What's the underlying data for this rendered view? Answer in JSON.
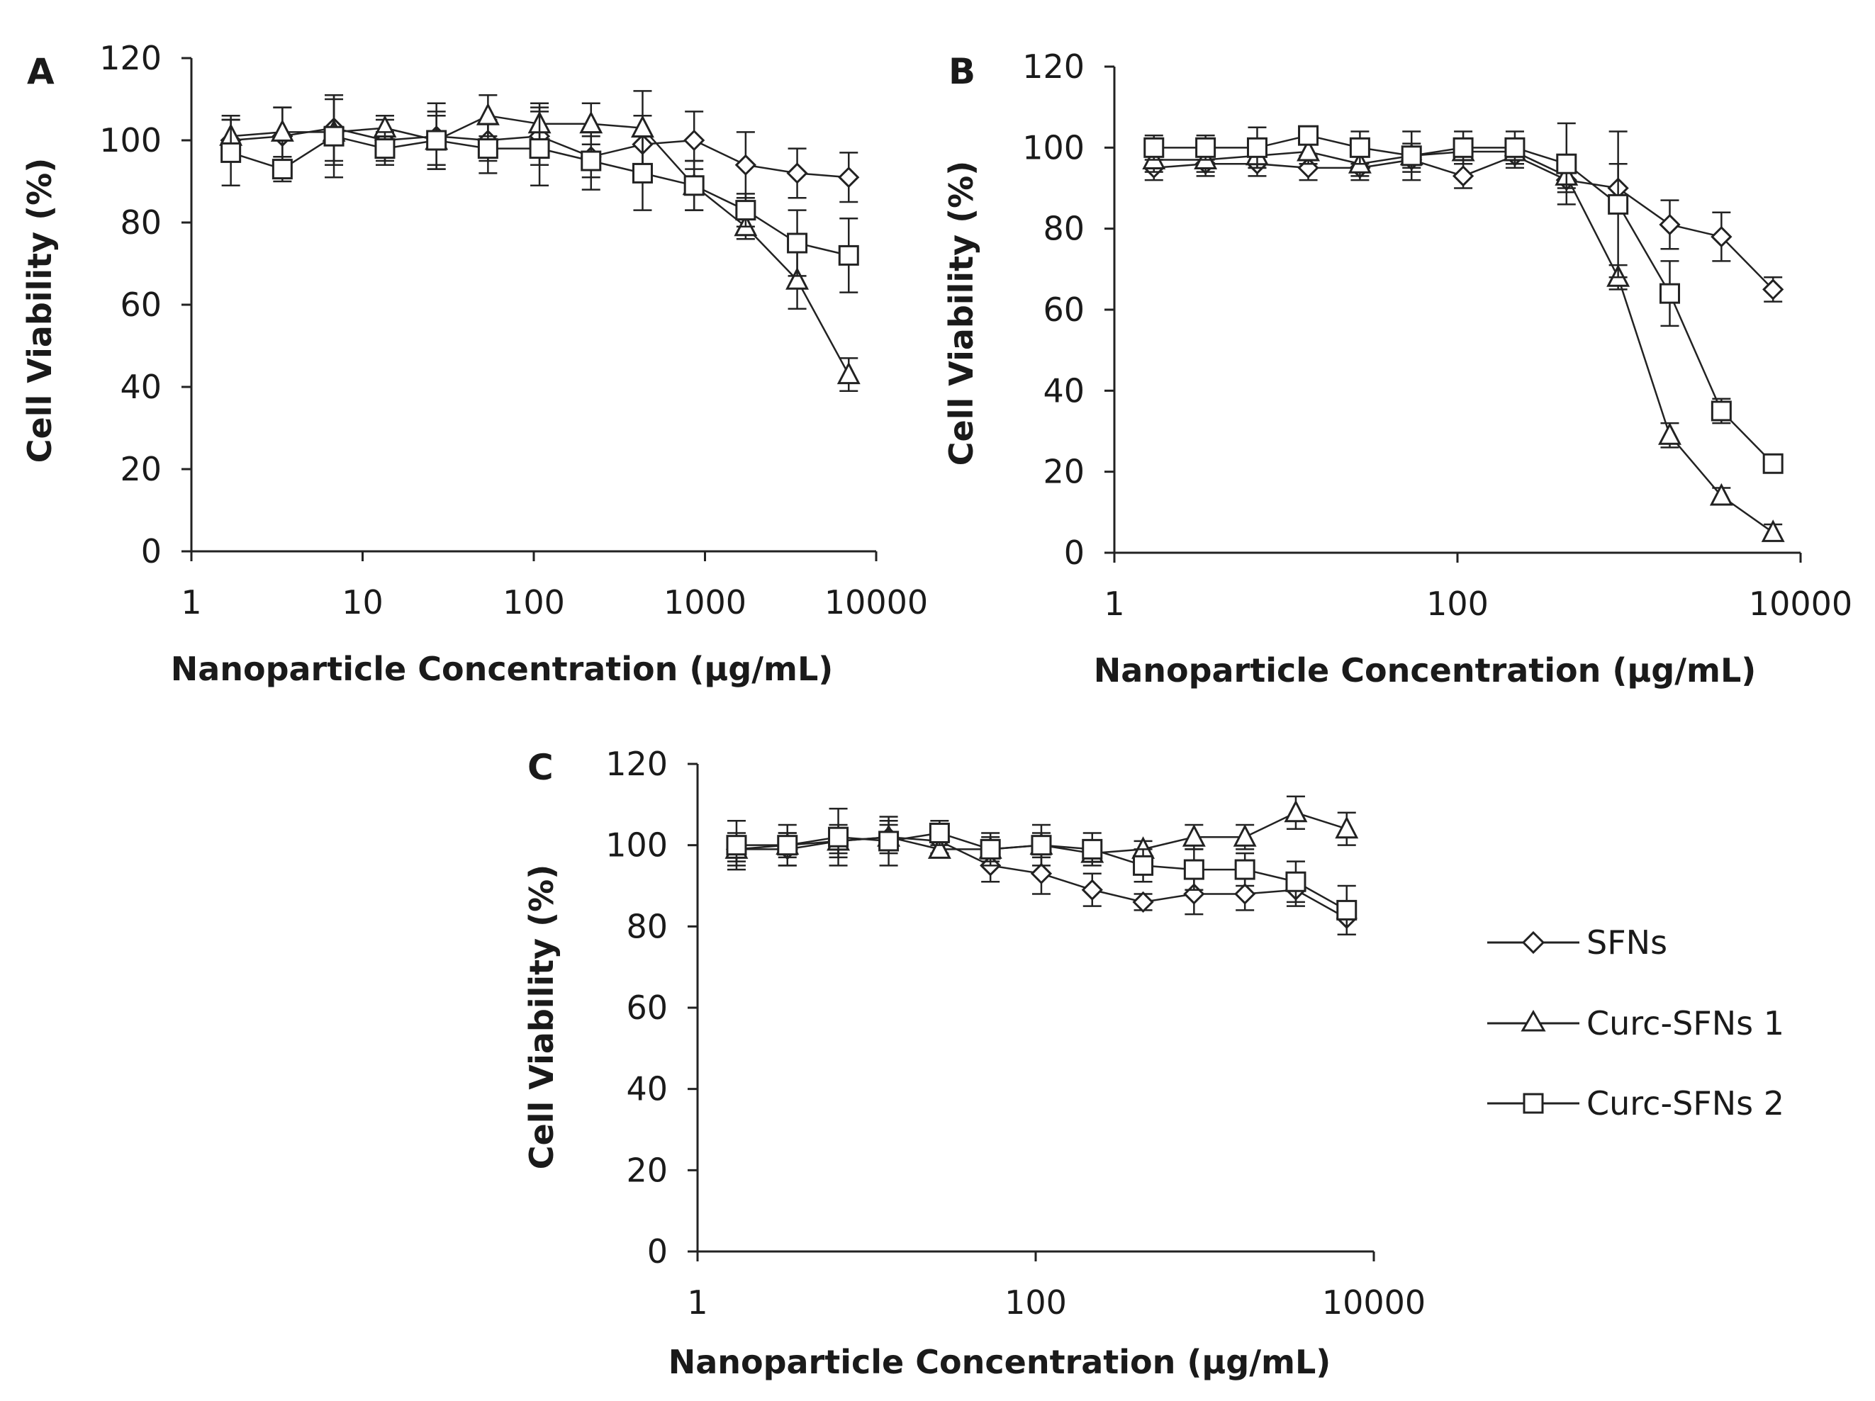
{
  "chart_data": [
    {
      "type": "line",
      "panel": "A",
      "xlabel": "Nanoparticle Concentration (µg/mL)",
      "ylabel": "Cell Viability (%)",
      "xscale": "log",
      "xlim": [
        1,
        10000
      ],
      "ylim": [
        0,
        120
      ],
      "xticks": [
        1,
        10,
        100,
        1000,
        10000
      ],
      "yticks": [
        0,
        20,
        40,
        60,
        80,
        100,
        120
      ],
      "grid": false,
      "x": [
        1.7,
        3.4,
        6.8,
        13.5,
        27,
        54,
        108,
        216,
        432,
        864,
        1728,
        3456,
        6912
      ],
      "series": [
        {
          "name": "SFNs",
          "marker": "diamond",
          "values": [
            100,
            101,
            103,
            100,
            101,
            100,
            101,
            96,
            99,
            100,
            94,
            92,
            91
          ],
          "errors": [
            5,
            7,
            8,
            5,
            8,
            5,
            7,
            5,
            7,
            7,
            8,
            6,
            6
          ]
        },
        {
          "name": "Curc-SFNs 1",
          "marker": "triangle",
          "values": [
            101,
            102,
            102,
            103,
            100,
            106,
            104,
            104,
            103,
            89,
            79,
            66,
            43
          ],
          "errors": [
            5,
            6,
            8,
            3,
            6,
            5,
            5,
            5,
            9,
            6,
            3,
            7,
            4
          ]
        },
        {
          "name": "Curc-SFNs 2",
          "marker": "square",
          "values": [
            97,
            93,
            101,
            98,
            100,
            98,
            98,
            95,
            92,
            89,
            83,
            75,
            72
          ],
          "errors": [
            8,
            3,
            10,
            4,
            7,
            6,
            9,
            7,
            9,
            6,
            4,
            8,
            9
          ]
        }
      ]
    },
    {
      "type": "line",
      "panel": "B",
      "xlabel": "Nanoparticle Concentration (µg/mL)",
      "ylabel": "Cell Viability (%)",
      "xscale": "log",
      "xlim": [
        1,
        10000
      ],
      "ylim": [
        0,
        120
      ],
      "xticks": [
        1,
        100,
        10000
      ],
      "yticks": [
        0,
        20,
        40,
        60,
        80,
        100,
        120
      ],
      "grid": false,
      "x": [
        1.7,
        3.4,
        6.8,
        13.5,
        27,
        54,
        108,
        216,
        432,
        864,
        1728,
        3456,
        6912
      ],
      "series": [
        {
          "name": "SFNs",
          "marker": "diamond",
          "values": [
            95,
            96,
            96,
            95,
            95,
            97,
            93,
            98,
            92,
            90,
            81,
            78,
            65
          ],
          "errors": [
            3,
            3,
            3,
            3,
            3,
            3,
            3,
            3,
            3,
            6,
            6,
            6,
            3
          ]
        },
        {
          "name": "Curc-SFNs 1",
          "marker": "triangle",
          "values": [
            97,
            97,
            98,
            99,
            96,
            98,
            99,
            99,
            93,
            68,
            29,
            14,
            5
          ],
          "errors": [
            3,
            3,
            3,
            3,
            3,
            3,
            3,
            3,
            3,
            3,
            3,
            2,
            2
          ]
        },
        {
          "name": "Curc-SFNs 2",
          "marker": "square",
          "values": [
            100,
            100,
            100,
            103,
            100,
            98,
            100,
            100,
            96,
            86,
            64,
            35,
            22
          ],
          "errors": [
            3,
            3,
            5,
            2,
            4,
            6,
            4,
            4,
            10,
            18,
            8,
            3,
            1
          ]
        }
      ]
    },
    {
      "type": "line",
      "panel": "C",
      "xlabel": "Nanoparticle Concentration (µg/mL)",
      "ylabel": "Cell Viability (%)",
      "xscale": "log",
      "xlim": [
        1,
        10000
      ],
      "ylim": [
        0,
        120
      ],
      "xticks": [
        1,
        100,
        10000
      ],
      "yticks": [
        0,
        20,
        40,
        60,
        80,
        100,
        120
      ],
      "grid": false,
      "legend": "right",
      "x": [
        1.7,
        3.4,
        6.8,
        13.5,
        27,
        54,
        108,
        216,
        432,
        864,
        1728,
        3456,
        6912
      ],
      "series": [
        {
          "name": "SFNs",
          "marker": "diamond",
          "values": [
            99,
            99,
            101,
            102,
            101,
            95,
            93,
            89,
            86,
            88,
            88,
            89,
            82
          ],
          "errors": [
            4,
            4,
            4,
            4,
            3,
            4,
            5,
            4,
            2,
            5,
            4,
            4,
            4
          ]
        },
        {
          "name": "Curc-SFNs 1",
          "marker": "triangle",
          "values": [
            99,
            100,
            101,
            102,
            99,
            99,
            100,
            98,
            99,
            102,
            102,
            108,
            104
          ],
          "errors": [
            3,
            3,
            3,
            3,
            2,
            3,
            3,
            2,
            2,
            3,
            3,
            4,
            4
          ]
        },
        {
          "name": "Curc-SFNs 2",
          "marker": "square",
          "values": [
            100,
            100,
            102,
            101,
            103,
            99,
            100,
            99,
            95,
            94,
            94,
            91,
            84
          ],
          "errors": [
            6,
            5,
            7,
            6,
            3,
            4,
            5,
            4,
            4,
            5,
            4,
            5,
            6
          ]
        }
      ]
    }
  ]
}
